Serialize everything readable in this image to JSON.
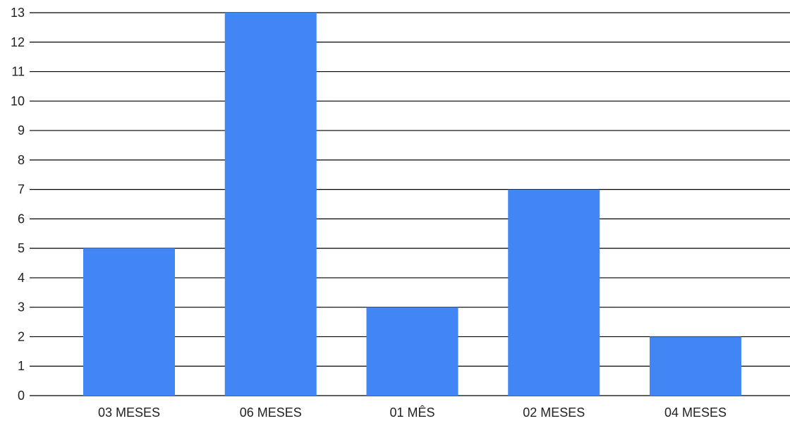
{
  "chart_data": {
    "type": "bar",
    "title": "",
    "xlabel": "",
    "ylabel": "",
    "categories": [
      "03 MESES",
      "06 MESES",
      "01 MÊS",
      "02 MESES",
      "04 MESES"
    ],
    "values": [
      5,
      13,
      3,
      7,
      2
    ],
    "ylim": [
      0,
      13
    ],
    "yticks": [
      0,
      1,
      2,
      3,
      4,
      5,
      6,
      7,
      8,
      9,
      10,
      11,
      12,
      13
    ],
    "grid": true,
    "legend": "none",
    "colors": {
      "bar": "#4285f4",
      "grid": "#000000",
      "text": "#222222",
      "background": "#ffffff"
    }
  }
}
